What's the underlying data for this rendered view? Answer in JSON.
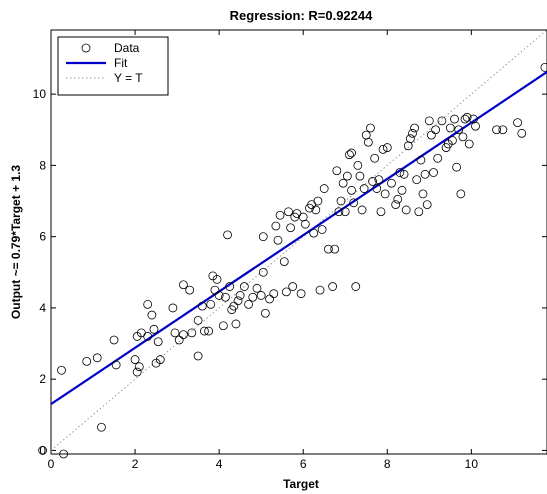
{
  "chart_data": {
    "type": "scatter",
    "title": "Regression: R=0.92244",
    "xlabel": "Target",
    "ylabel": "Output ~= 0.79*Target + 1.3",
    "xlim": [
      0,
      11.8
    ],
    "ylim": [
      -0.1,
      11.8
    ],
    "xticks": [
      0,
      2,
      4,
      6,
      8,
      10
    ],
    "yticks": [
      0,
      2,
      4,
      6,
      8,
      10
    ],
    "grid": false,
    "legend_position": "top-left",
    "legend": [
      {
        "label": "Data",
        "style": "marker",
        "color": "#000000"
      },
      {
        "label": "Fit",
        "style": "solid",
        "color": "#0000c8"
      },
      {
        "label": "Y = T",
        "style": "dotted",
        "color": "#999999"
      }
    ],
    "fit": {
      "slope": 0.79,
      "intercept": 1.3,
      "color": "#0000c8"
    },
    "identity_color": "#999999",
    "marker_color": "#000000",
    "series": [
      {
        "name": "Data",
        "points": [
          [
            -0.2,
            0.0
          ],
          [
            0.3,
            -0.1
          ],
          [
            0.25,
            2.25
          ],
          [
            0.85,
            2.5
          ],
          [
            1.1,
            2.6
          ],
          [
            1.2,
            0.65
          ],
          [
            1.5,
            3.1
          ],
          [
            1.55,
            2.4
          ],
          [
            2.0,
            2.55
          ],
          [
            2.05,
            2.2
          ],
          [
            2.1,
            2.35
          ],
          [
            2.05,
            3.2
          ],
          [
            2.15,
            3.3
          ],
          [
            2.3,
            3.2
          ],
          [
            2.3,
            4.1
          ],
          [
            2.4,
            3.8
          ],
          [
            2.45,
            3.4
          ],
          [
            2.5,
            2.45
          ],
          [
            2.6,
            2.55
          ],
          [
            2.55,
            3.05
          ],
          [
            2.9,
            4.0
          ],
          [
            2.95,
            3.3
          ],
          [
            3.05,
            3.1
          ],
          [
            3.15,
            3.25
          ],
          [
            3.15,
            4.65
          ],
          [
            3.3,
            4.5
          ],
          [
            3.35,
            3.3
          ],
          [
            3.5,
            2.65
          ],
          [
            3.5,
            3.65
          ],
          [
            3.6,
            4.05
          ],
          [
            3.65,
            3.35
          ],
          [
            3.75,
            3.35
          ],
          [
            3.8,
            4.1
          ],
          [
            3.85,
            4.9
          ],
          [
            3.9,
            4.5
          ],
          [
            3.95,
            4.8
          ],
          [
            4.0,
            4.35
          ],
          [
            4.1,
            3.5
          ],
          [
            4.15,
            4.3
          ],
          [
            4.2,
            6.05
          ],
          [
            4.25,
            4.6
          ],
          [
            4.3,
            3.95
          ],
          [
            4.35,
            4.05
          ],
          [
            4.4,
            3.55
          ],
          [
            4.45,
            4.2
          ],
          [
            4.5,
            4.35
          ],
          [
            4.6,
            4.6
          ],
          [
            4.7,
            4.1
          ],
          [
            4.8,
            4.3
          ],
          [
            4.9,
            4.55
          ],
          [
            5.0,
            4.35
          ],
          [
            5.05,
            5.0
          ],
          [
            5.05,
            6.0
          ],
          [
            5.1,
            3.85
          ],
          [
            5.2,
            4.25
          ],
          [
            5.3,
            4.4
          ],
          [
            5.35,
            6.3
          ],
          [
            5.4,
            5.9
          ],
          [
            5.45,
            6.6
          ],
          [
            5.55,
            5.3
          ],
          [
            5.6,
            4.45
          ],
          [
            5.65,
            6.7
          ],
          [
            5.7,
            6.25
          ],
          [
            5.75,
            4.6
          ],
          [
            5.8,
            6.55
          ],
          [
            5.85,
            6.65
          ],
          [
            5.95,
            4.4
          ],
          [
            6.0,
            6.55
          ],
          [
            6.05,
            6.35
          ],
          [
            6.15,
            6.8
          ],
          [
            6.2,
            6.9
          ],
          [
            6.25,
            6.1
          ],
          [
            6.3,
            6.75
          ],
          [
            6.35,
            7.0
          ],
          [
            6.4,
            4.5
          ],
          [
            6.45,
            6.2
          ],
          [
            6.5,
            7.35
          ],
          [
            6.6,
            5.65
          ],
          [
            6.7,
            4.6
          ],
          [
            6.75,
            5.65
          ],
          [
            6.8,
            7.85
          ],
          [
            6.85,
            6.7
          ],
          [
            6.9,
            7.0
          ],
          [
            6.95,
            7.5
          ],
          [
            7.0,
            6.7
          ],
          [
            7.05,
            7.7
          ],
          [
            7.1,
            8.3
          ],
          [
            7.15,
            8.35
          ],
          [
            7.15,
            7.3
          ],
          [
            7.2,
            6.95
          ],
          [
            7.25,
            4.6
          ],
          [
            7.3,
            8.0
          ],
          [
            7.35,
            7.7
          ],
          [
            7.4,
            6.75
          ],
          [
            7.45,
            7.35
          ],
          [
            7.5,
            8.85
          ],
          [
            7.55,
            8.65
          ],
          [
            7.6,
            9.05
          ],
          [
            7.65,
            7.55
          ],
          [
            7.7,
            8.2
          ],
          [
            7.75,
            7.35
          ],
          [
            7.8,
            7.6
          ],
          [
            7.85,
            6.7
          ],
          [
            7.9,
            8.45
          ],
          [
            7.95,
            7.2
          ],
          [
            8.0,
            8.5
          ],
          [
            8.1,
            7.5
          ],
          [
            8.2,
            6.9
          ],
          [
            8.25,
            7.05
          ],
          [
            8.3,
            7.8
          ],
          [
            8.35,
            7.3
          ],
          [
            8.4,
            7.75
          ],
          [
            8.45,
            6.75
          ],
          [
            8.5,
            8.55
          ],
          [
            8.55,
            8.75
          ],
          [
            8.6,
            8.9
          ],
          [
            8.65,
            9.05
          ],
          [
            8.7,
            7.6
          ],
          [
            8.75,
            6.7
          ],
          [
            8.8,
            8.15
          ],
          [
            8.85,
            7.2
          ],
          [
            8.9,
            7.75
          ],
          [
            8.95,
            6.9
          ],
          [
            9.0,
            9.25
          ],
          [
            9.05,
            8.85
          ],
          [
            9.1,
            7.8
          ],
          [
            9.15,
            9.0
          ],
          [
            9.2,
            8.2
          ],
          [
            9.3,
            9.25
          ],
          [
            9.4,
            8.5
          ],
          [
            9.45,
            8.6
          ],
          [
            9.5,
            9.05
          ],
          [
            9.55,
            8.7
          ],
          [
            9.6,
            9.3
          ],
          [
            9.65,
            7.95
          ],
          [
            9.7,
            9.0
          ],
          [
            9.75,
            7.2
          ],
          [
            9.8,
            8.8
          ],
          [
            9.85,
            9.3
          ],
          [
            9.9,
            9.35
          ],
          [
            9.95,
            8.6
          ],
          [
            10.05,
            9.3
          ],
          [
            10.1,
            9.1
          ],
          [
            10.6,
            9.0
          ],
          [
            10.75,
            9.0
          ],
          [
            11.1,
            9.2
          ],
          [
            11.2,
            8.9
          ],
          [
            11.75,
            10.75
          ]
        ]
      }
    ]
  }
}
